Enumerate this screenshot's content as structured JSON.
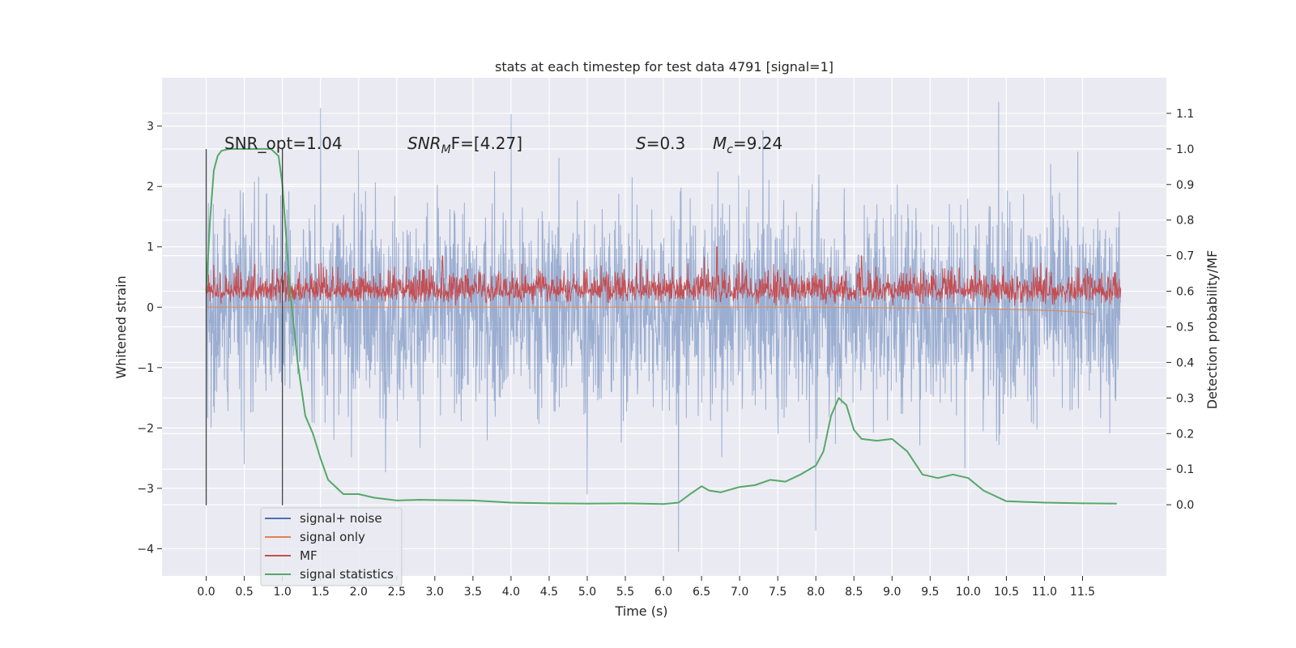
{
  "chart_data": {
    "type": "line",
    "title": "stats at each timestep for test data 4791 [signal=1]",
    "xlabel": "Time (s)",
    "ylabel": "Whitened strain",
    "ylabel_right": "Detection probability/MF",
    "xlim": [
      -0.58,
      12.6
    ],
    "ylim": [
      -4.45,
      3.8
    ],
    "ylim_right": [
      -0.2,
      1.2
    ],
    "x_ticks": [
      0.0,
      0.5,
      1.0,
      1.5,
      2.0,
      2.5,
      3.0,
      3.5,
      4.0,
      4.5,
      5.0,
      5.5,
      6.0,
      6.5,
      7.0,
      7.5,
      8.0,
      8.5,
      9.0,
      9.5,
      10.0,
      10.5,
      11.0,
      11.5
    ],
    "x_tick_labels": [
      "0.0",
      "0.5",
      "1.0",
      "1.5",
      "2.0",
      "2.5",
      "3.0",
      "3.5",
      "4.0",
      "4.5",
      "5.0",
      "5.5",
      "6.0",
      "6.5",
      "7.0",
      "7.5",
      "8.0",
      "8.5",
      "9.0",
      "9.5",
      "10.0",
      "10.5",
      "11.0",
      "11.5"
    ],
    "y_ticks": [
      -4,
      -3,
      -2,
      -1,
      0,
      1,
      2,
      3
    ],
    "y_tick_labels": [
      "−4",
      "−3",
      "−2",
      "−1",
      "0",
      "1",
      "2",
      "3"
    ],
    "y_right_ticks": [
      0.0,
      0.1,
      0.2,
      0.3,
      0.4,
      0.5,
      0.6,
      0.7,
      0.8,
      0.9,
      1.0,
      1.1
    ],
    "y_right_tick_labels": [
      "0.0",
      "0.1",
      "0.2",
      "0.3",
      "0.4",
      "0.5",
      "0.6",
      "0.7",
      "0.8",
      "0.9",
      "1.0",
      "1.1"
    ],
    "grid": true,
    "legend_position": "lower-left",
    "annotations": {
      "snr_opt": "SNR_opt=1.04",
      "snr_mf_base": "SNR",
      "snr_mf_sub": "M",
      "snr_mf_rest": "F=[4.27]",
      "s_label": "S",
      "s_value": "=0.3",
      "mc_base": "M",
      "mc_sub": "c",
      "mc_value": "=9.24"
    },
    "vlines": [
      0.0,
      1.0
    ],
    "series": [
      {
        "name": "signal+ noise",
        "color": "#4c72b0",
        "axis": "left",
        "x_range": [
          0.0,
          12.0
        ],
        "typical_range": [
          -2.2,
          2.2
        ],
        "spikes": [
          [
            1.5,
            3.3
          ],
          [
            2.0,
            2.6
          ],
          [
            4.0,
            3.2
          ],
          [
            6.2,
            -4.05
          ],
          [
            8.0,
            -3.7
          ],
          [
            10.4,
            3.4
          ],
          [
            0.5,
            -2.6
          ],
          [
            5.0,
            -3.1
          ]
        ]
      },
      {
        "name": "signal only",
        "color": "#dd8452",
        "axis": "left",
        "x_range": [
          0.0,
          11.65
        ],
        "x": [
          0.0,
          2.0,
          4.0,
          6.0,
          8.0,
          9.0,
          10.0,
          11.0,
          11.5,
          11.65
        ],
        "y": [
          0.0,
          0.0,
          0.0,
          0.0,
          0.0,
          -0.01,
          -0.02,
          -0.05,
          -0.08,
          -0.12
        ]
      },
      {
        "name": "MF",
        "color": "#c44e52",
        "axis": "left",
        "x_range": [
          0.0,
          12.0
        ],
        "typical_range": [
          0.0,
          0.55
        ],
        "spikes": [
          [
            6.7,
            1.0
          ],
          [
            3.1,
            0.85
          ],
          [
            8.6,
            0.85
          ],
          [
            5.7,
            0.8
          ]
        ]
      },
      {
        "name": "signal statistics",
        "color": "#55a868",
        "axis": "right",
        "x": [
          0.0,
          0.05,
          0.1,
          0.15,
          0.2,
          0.3,
          0.5,
          0.7,
          0.85,
          0.95,
          1.0,
          1.05,
          1.1,
          1.2,
          1.3,
          1.4,
          1.5,
          1.6,
          1.8,
          2.0,
          2.2,
          2.5,
          2.8,
          3.0,
          3.5,
          4.0,
          4.5,
          5.0,
          5.5,
          6.0,
          6.2,
          6.35,
          6.5,
          6.6,
          6.75,
          6.9,
          7.0,
          7.2,
          7.4,
          7.6,
          7.8,
          8.0,
          8.1,
          8.2,
          8.3,
          8.4,
          8.5,
          8.6,
          8.8,
          9.0,
          9.2,
          9.4,
          9.6,
          9.8,
          10.0,
          10.2,
          10.5,
          11.0,
          11.5,
          11.95
        ],
        "y": [
          0.6,
          0.8,
          0.94,
          0.98,
          0.995,
          1.0,
          1.0,
          1.0,
          1.0,
          0.98,
          0.9,
          0.75,
          0.6,
          0.4,
          0.25,
          0.2,
          0.13,
          0.07,
          0.03,
          0.03,
          0.02,
          0.012,
          0.014,
          0.013,
          0.012,
          0.006,
          0.004,
          0.003,
          0.004,
          0.002,
          0.006,
          0.03,
          0.052,
          0.04,
          0.035,
          0.044,
          0.05,
          0.055,
          0.07,
          0.065,
          0.085,
          0.11,
          0.15,
          0.25,
          0.3,
          0.28,
          0.21,
          0.185,
          0.18,
          0.185,
          0.15,
          0.085,
          0.075,
          0.085,
          0.075,
          0.04,
          0.01,
          0.006,
          0.004,
          0.003
        ]
      }
    ]
  }
}
